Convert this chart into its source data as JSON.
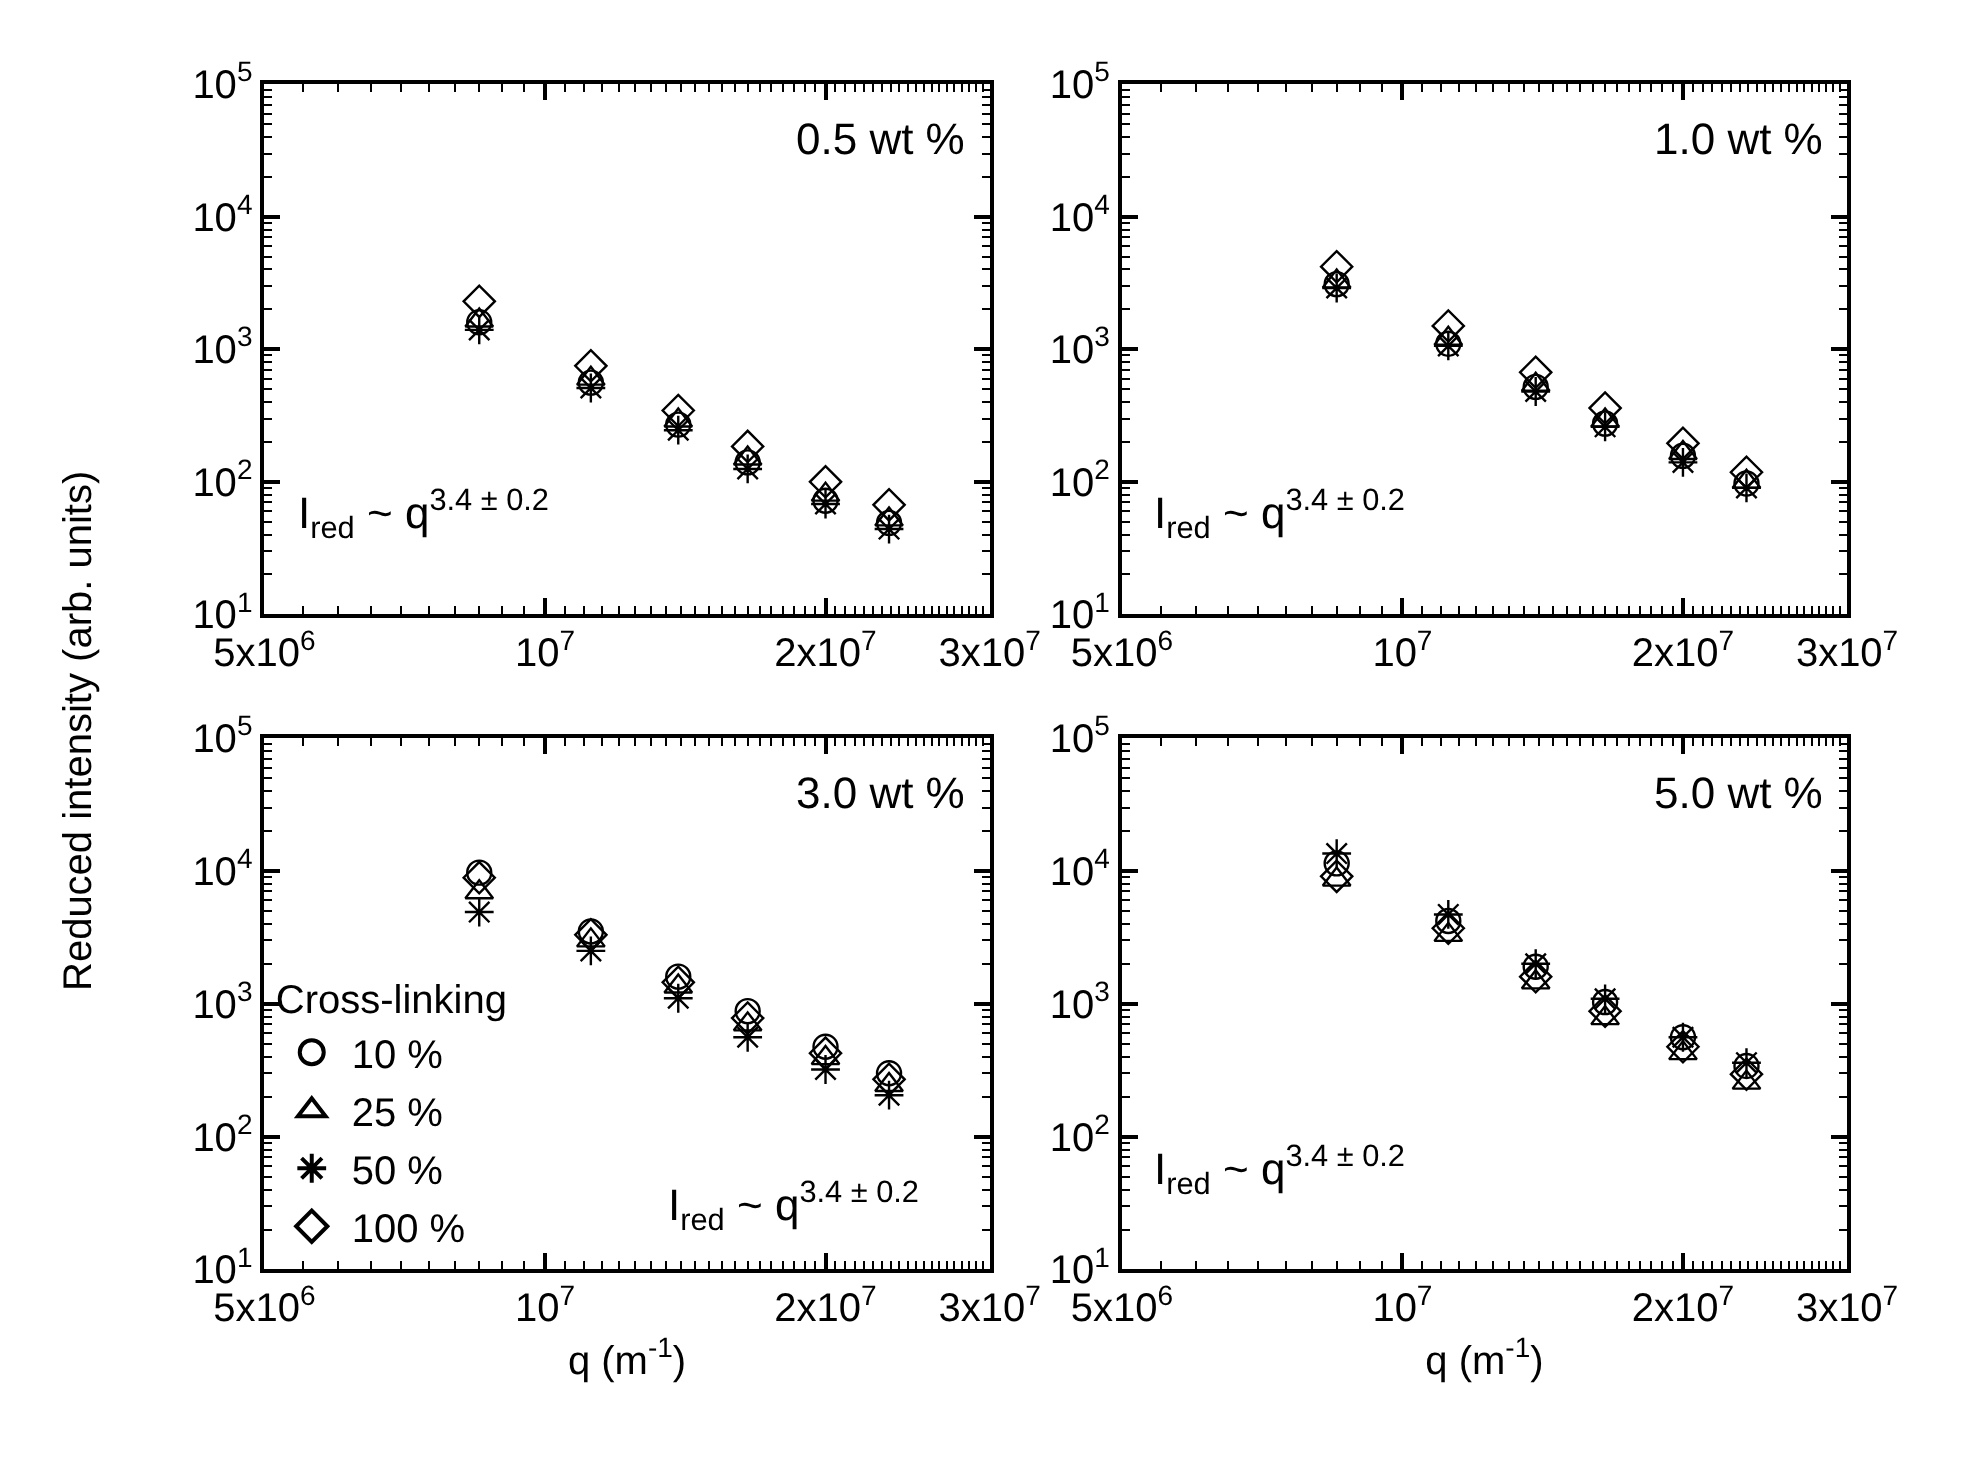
{
  "chart_data": [
    {
      "type": "scatter",
      "ylabel": "Reduced intensity (arb. units)",
      "annotations": [
        "0.5 wt %",
        "I$_{red}$ ~ q$^{3.4 ± 0.2}$"
      ],
      "log": "xy",
      "xlim": [
        5000000,
        30000000
      ],
      "ylim": [
        10,
        100000
      ],
      "xticks": [
        {
          "value": 5000000,
          "label": "5x10$^{6}$"
        },
        {
          "value": 10000000,
          "label": "10$^{7}$"
        },
        {
          "value": 20000000,
          "label": "2x10$^{7}$"
        },
        {
          "value": 30000000,
          "label": "3x10$^{7}$"
        }
      ],
      "yticks": [
        {
          "value": 10,
          "label": "10$^{1}$"
        },
        {
          "value": 100,
          "label": "10$^{2}$"
        },
        {
          "value": 1000,
          "label": "10$^{3}$"
        },
        {
          "value": 10000,
          "label": "10$^{4}$"
        },
        {
          "value": 100000,
          "label": "10$^{5}$"
        }
      ],
      "x": [
        8500000,
        11200000,
        13900000,
        16500000,
        20000000,
        23400000
      ],
      "series": [
        {
          "color": "#000000",
          "marker": "circle",
          "values": [
            1600,
            560,
            270,
            140,
            72,
            49
          ]
        },
        {
          "color": "#000000",
          "marker": "triangle",
          "values": [
            1650,
            600,
            290,
            150,
            80,
            52
          ]
        },
        {
          "color": "#000000",
          "marker": "cross",
          "values": [
            1400,
            510,
            245,
            125,
            68,
            44
          ]
        },
        {
          "color": "#000000",
          "marker": "diamond",
          "values": [
            2300,
            750,
            345,
            185,
            100,
            67
          ]
        }
      ]
    },
    {
      "type": "scatter",
      "annotations": [
        "1.0 wt %",
        "I$_{red}$ ~ q$^{3.4 ± 0.2}$"
      ],
      "log": "xy",
      "xlim": [
        5000000,
        30000000
      ],
      "ylim": [
        10,
        100000
      ],
      "xticks": [
        {
          "value": 5000000,
          "label": "5x10$^{6}$"
        },
        {
          "value": 10000000,
          "label": "10$^{7}$"
        },
        {
          "value": 20000000,
          "label": "2x10$^{7}$"
        },
        {
          "value": 30000000,
          "label": "3x10$^{7}$"
        }
      ],
      "yticks": [
        {
          "value": 10,
          "label": "10$^{1}$"
        },
        {
          "value": 100,
          "label": "10$^{2}$"
        },
        {
          "value": 1000,
          "label": "10$^{3}$"
        },
        {
          "value": 10000,
          "label": "10$^{4}$"
        },
        {
          "value": 100000,
          "label": "10$^{5}$"
        }
      ],
      "x": [
        8500000,
        11200000,
        13900000,
        16500000,
        20000000,
        23400000
      ],
      "series": [
        {
          "color": "#000000",
          "marker": "circle",
          "values": [
            3100,
            1100,
            520,
            275,
            157,
            97
          ]
        },
        {
          "color": "#000000",
          "marker": "triangle",
          "values": [
            3250,
            1200,
            540,
            290,
            165,
            100
          ]
        },
        {
          "color": "#000000",
          "marker": "cross",
          "values": [
            2900,
            1060,
            480,
            260,
            140,
            90
          ]
        },
        {
          "color": "#000000",
          "marker": "diamond",
          "values": [
            4200,
            1500,
            670,
            360,
            195,
            118
          ]
        }
      ]
    },
    {
      "type": "scatter",
      "xlabel": "q (m$^{-1}$)",
      "annotations": [
        "3.0 wt %",
        "I$_{red}$ ~ q$^{3.4 ± 0.2}$"
      ],
      "legend_title": "Cross-linking",
      "legend": "left",
      "log": "xy",
      "xlim": [
        5000000,
        30000000
      ],
      "ylim": [
        10,
        100000
      ],
      "xticks": [
        {
          "value": 5000000,
          "label": "5x10$^{6}$"
        },
        {
          "value": 10000000,
          "label": "10$^{7}$"
        },
        {
          "value": 20000000,
          "label": "2x10$^{7}$"
        },
        {
          "value": 30000000,
          "label": "3x10$^{7}$"
        }
      ],
      "yticks": [
        {
          "value": 10,
          "label": "10$^{1}$"
        },
        {
          "value": 100,
          "label": "10$^{2}$"
        },
        {
          "value": 1000,
          "label": "10$^{3}$"
        },
        {
          "value": 10000,
          "label": "10$^{4}$"
        },
        {
          "value": 100000,
          "label": "10$^{5}$"
        }
      ],
      "x": [
        8500000,
        11200000,
        13900000,
        16500000,
        20000000,
        23400000
      ],
      "series": [
        {
          "name": "10 %",
          "color": "#000000",
          "marker": "circle",
          "values": [
            9700,
            3500,
            1600,
            880,
            475,
            300
          ]
        },
        {
          "name": "25 %",
          "color": "#000000",
          "marker": "triangle",
          "values": [
            6900,
            3000,
            1350,
            700,
            390,
            245
          ]
        },
        {
          "name": "50 %",
          "color": "#000000",
          "marker": "cross",
          "values": [
            4900,
            2500,
            1100,
            560,
            320,
            205
          ]
        },
        {
          "name": "100 %",
          "color": "#000000",
          "marker": "diamond",
          "values": [
            8900,
            3300,
            1450,
            780,
            425,
            270
          ]
        }
      ]
    },
    {
      "type": "scatter",
      "xlabel": "q (m$^{-1}$)",
      "annotations": [
        "5.0 wt %",
        "I$_{red}$ ~ q$^{3.4 ± 0.2}$"
      ],
      "log": "xy",
      "xlim": [
        5000000,
        30000000
      ],
      "ylim": [
        10,
        100000
      ],
      "xticks": [
        {
          "value": 5000000,
          "label": "5x10$^{6}$"
        },
        {
          "value": 10000000,
          "label": "10$^{7}$"
        },
        {
          "value": 20000000,
          "label": "2x10$^{7}$"
        },
        {
          "value": 30000000,
          "label": "3x10$^{7}$"
        }
      ],
      "yticks": [
        {
          "value": 10,
          "label": "10$^{1}$"
        },
        {
          "value": 100,
          "label": "10$^{2}$"
        },
        {
          "value": 1000,
          "label": "10$^{3}$"
        },
        {
          "value": 10000,
          "label": "10$^{4}$"
        },
        {
          "value": 100000,
          "label": "10$^{5}$"
        }
      ],
      "x": [
        8500000,
        11200000,
        13900000,
        16500000,
        20000000,
        23400000
      ],
      "series": [
        {
          "color": "#000000",
          "marker": "circle",
          "values": [
            11400,
            4200,
            1900,
            1030,
            560,
            340
          ]
        },
        {
          "color": "#000000",
          "marker": "triangle",
          "values": [
            8600,
            3300,
            1450,
            780,
            425,
            255
          ]
        },
        {
          "color": "#000000",
          "marker": "cross",
          "values": [
            13500,
            4700,
            2000,
            1090,
            560,
            360
          ]
        },
        {
          "color": "#000000",
          "marker": "diamond",
          "values": [
            9100,
            3700,
            1600,
            880,
            475,
            295
          ]
        }
      ]
    }
  ]
}
